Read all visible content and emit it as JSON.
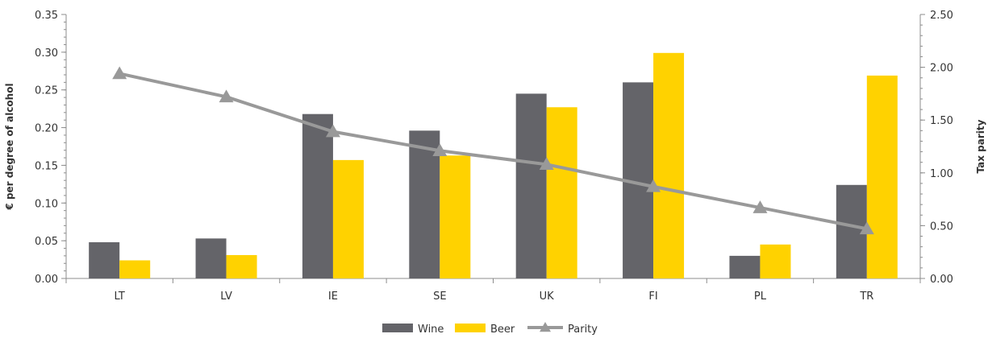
{
  "chart_data": {
    "type": "bar",
    "categories": [
      "LT",
      "LV",
      "IE",
      "SE",
      "UK",
      "FI",
      "PL",
      "TR"
    ],
    "series": [
      {
        "name": "Wine",
        "type": "bar",
        "axis": "left",
        "color": "#646469",
        "values": [
          0.048,
          0.053,
          0.218,
          0.196,
          0.245,
          0.26,
          0.03,
          0.124
        ]
      },
      {
        "name": "Beer",
        "type": "bar",
        "axis": "left",
        "color": "#FFD200",
        "values": [
          0.024,
          0.031,
          0.157,
          0.163,
          0.227,
          0.299,
          0.045,
          0.269
        ]
      },
      {
        "name": "Parity",
        "type": "line",
        "axis": "right",
        "color": "#999999",
        "marker": "triangle",
        "values": [
          1.94,
          1.72,
          1.39,
          1.21,
          1.08,
          0.87,
          0.67,
          0.47
        ]
      }
    ],
    "ylabel": "€ per degree of alcohol",
    "y2label": "Tax parity",
    "ylim": [
      0,
      0.35
    ],
    "y2lim": [
      0,
      2.5
    ],
    "yticks": [
      "0.00",
      "0.05",
      "0.10",
      "0.15",
      "0.20",
      "0.25",
      "0.30",
      "0.35"
    ],
    "y2ticks": [
      "0.00",
      "0.50",
      "1.00",
      "1.50",
      "2.00",
      "2.50"
    ],
    "legend_position": "bottom",
    "grid": false
  }
}
